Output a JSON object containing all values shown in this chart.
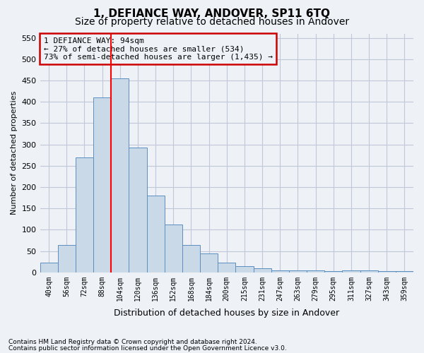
{
  "title": "1, DEFIANCE WAY, ANDOVER, SP11 6TQ",
  "subtitle": "Size of property relative to detached houses in Andover",
  "xlabel": "Distribution of detached houses by size in Andover",
  "ylabel": "Number of detached properties",
  "footnote1": "Contains HM Land Registry data © Crown copyright and database right 2024.",
  "footnote2": "Contains public sector information licensed under the Open Government Licence v3.0.",
  "categories": [
    "40sqm",
    "56sqm",
    "72sqm",
    "88sqm",
    "104sqm",
    "120sqm",
    "136sqm",
    "152sqm",
    "168sqm",
    "184sqm",
    "200sqm",
    "215sqm",
    "231sqm",
    "247sqm",
    "263sqm",
    "279sqm",
    "295sqm",
    "311sqm",
    "327sqm",
    "343sqm",
    "359sqm"
  ],
  "values": [
    22,
    65,
    270,
    410,
    455,
    293,
    180,
    112,
    65,
    44,
    22,
    14,
    10,
    5,
    5,
    5,
    3,
    5,
    4,
    3,
    3
  ],
  "bar_color": "#c9d9e8",
  "bar_edge_color": "#5a8fc0",
  "grid_color": "#c0c8d8",
  "annotation_box_color": "#cc0000",
  "annotation_text": "1 DEFIANCE WAY: 94sqm\n← 27% of detached houses are smaller (534)\n73% of semi-detached houses are larger (1,435) →",
  "red_line_x": 3.5,
  "ylim": [
    0,
    560
  ],
  "yticks": [
    0,
    50,
    100,
    150,
    200,
    250,
    300,
    350,
    400,
    450,
    500,
    550
  ],
  "background_color": "#eef2f7",
  "title_fontsize": 11,
  "subtitle_fontsize": 10
}
